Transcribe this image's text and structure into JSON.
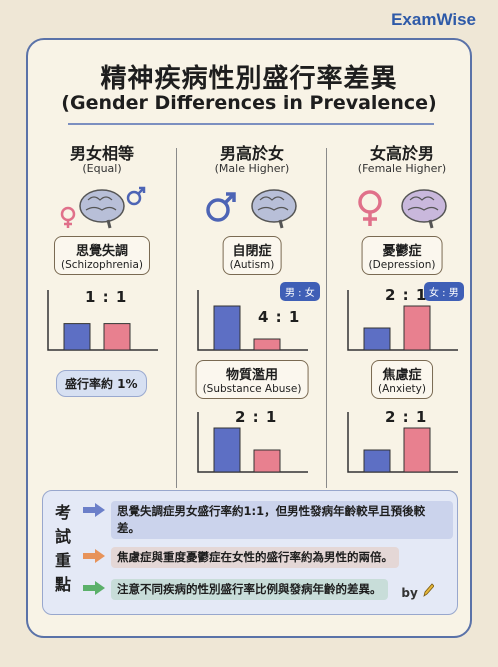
{
  "brand": "ExamWise",
  "title": {
    "cn": "精神疾病性別盛行率差異",
    "en": "(Gender Differences in Prevalence)"
  },
  "columns": [
    {
      "heading": "男女相等",
      "subheading": "(Equal)",
      "disorders": [
        {
          "cn": "思覺失調",
          "en": "(Schizophrenia)",
          "ratio_label": "1 : 1",
          "male": 1,
          "female": 1
        }
      ],
      "note": "盛行率約 1%"
    },
    {
      "heading": "男高於女",
      "subheading": "(Male Higher)",
      "legend": "男 : 女",
      "disorders": [
        {
          "cn": "自閉症",
          "en": "(Autism)",
          "ratio_label": "4 : 1",
          "male": 4,
          "female": 1
        },
        {
          "cn": "物質濫用",
          "en": "(Substance Abuse)",
          "ratio_label": "2 : 1",
          "male": 2,
          "female": 1
        }
      ]
    },
    {
      "heading": "女高於男",
      "subheading": "(Female Higher)",
      "legend": "女 : 男",
      "disorders": [
        {
          "cn": "憂鬱症",
          "en": "(Depression)",
          "ratio_label": "2 : 1",
          "male": 1,
          "female": 2
        },
        {
          "cn": "焦慮症",
          "en": "(Anxiety)",
          "ratio_label": "2 : 1",
          "male": 1,
          "female": 2
        }
      ]
    }
  ],
  "key_points": {
    "title": "考試重點",
    "items": [
      {
        "text": "思覺失調症男女盛行率約1:1，但男性發病年齡較早且預後較差。",
        "color": "#6b7fc9"
      },
      {
        "text": "焦慮症與重度憂鬱症在女性的盛行率約為男性的兩倍。",
        "color": "#e7935a"
      },
      {
        "text": "注意不同疾病的性別盛行率比例與發病年齡的差異。",
        "color": "#5bb06a"
      }
    ]
  },
  "byline": "by",
  "colors": {
    "male": "#5d6fc4",
    "female": "#e8808f",
    "accent": "#2e5aa8"
  }
}
